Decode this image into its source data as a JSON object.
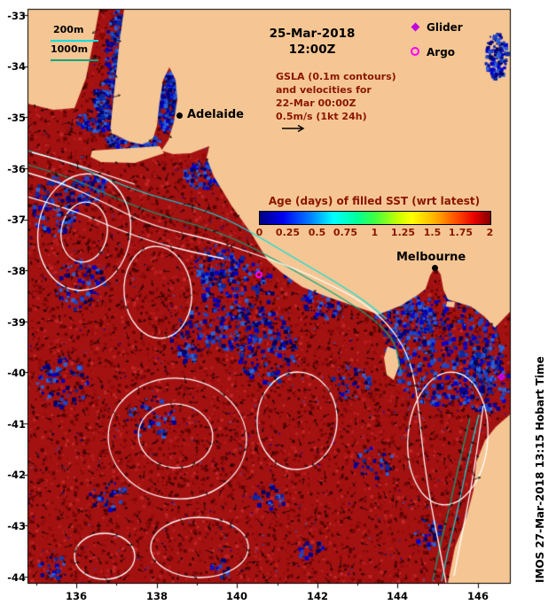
{
  "title": {
    "date": "25-Mar-2018",
    "time": "12:00Z"
  },
  "obs_legend": {
    "glider_label": "Glider",
    "argo_label": "Argo"
  },
  "depth_legend": {
    "shallow": "200m",
    "deep": "1000m"
  },
  "info": {
    "line1": "GSLA (0.1m contours)",
    "line2": "and velocities for",
    "line3": "22-Mar 00:00Z",
    "line4": "0.5m/s (1kt 24h)"
  },
  "colorbar": {
    "title": "Age (days) of filled SST (wrt latest)",
    "ticks": [
      "0",
      "0.25",
      "0.5",
      "0.75",
      "1",
      "1.25",
      "1.5",
      "1.75",
      "2"
    ]
  },
  "cities": {
    "adelaide": "Adelaide",
    "melbourne": "Melbourne"
  },
  "watermark": "IMOS 27-Mar-2018 13:15 Hobart Time",
  "axes": {
    "lat": [
      "-33",
      "-34",
      "-35",
      "-36",
      "-37",
      "-38",
      "-39",
      "-40",
      "-41",
      "-42",
      "-43",
      "-44"
    ],
    "lon": [
      "136",
      "138",
      "140",
      "142",
      "144",
      "146"
    ]
  },
  "colors": {
    "land": "#f5c693",
    "sea": "#a31111",
    "sea_dark": "#7c0707",
    "blue_recent": "#0000c8",
    "contour_white": "#ffffff",
    "isobath_200m": "#00e0e0",
    "isobath_1000m": "#00a57d",
    "glider_marker": "#c000e0",
    "argo_marker": "#ff00ff",
    "annotation_maroon": "#8b1500",
    "text_black": "#000000"
  }
}
